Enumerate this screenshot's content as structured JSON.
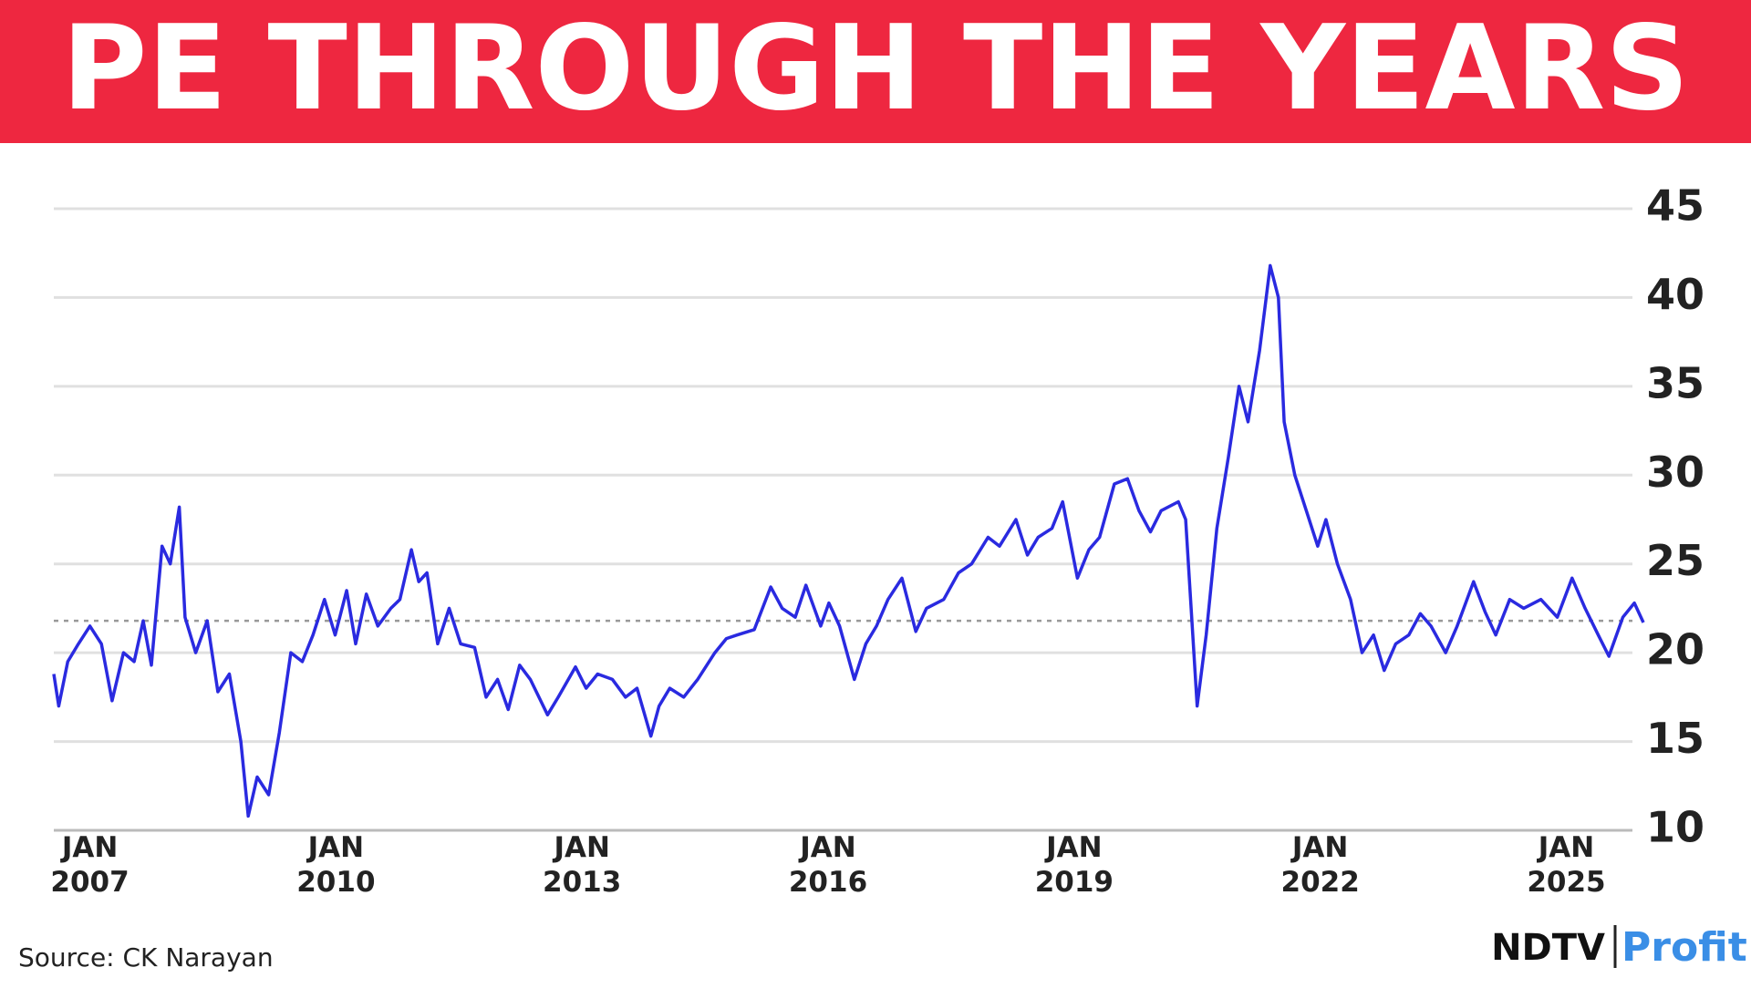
{
  "chart_data": {
    "type": "line",
    "title": "PE THROUGH THE YEARS",
    "source": "Source: CK Narayan",
    "logo": {
      "brand": "NDTV",
      "product": "Profit"
    },
    "x": [
      2006.56,
      2006.62,
      2006.73,
      2006.86,
      2007.0,
      2007.14,
      2007.27,
      2007.41,
      2007.54,
      2007.65,
      2007.75,
      2007.88,
      2007.98,
      2008.09,
      2008.16,
      2008.29,
      2008.43,
      2008.56,
      2008.7,
      2008.84,
      2008.93,
      2009.04,
      2009.18,
      2009.31,
      2009.45,
      2009.59,
      2009.72,
      2009.86,
      2009.99,
      2010.13,
      2010.24,
      2010.37,
      2010.51,
      2010.67,
      2010.78,
      2010.92,
      2011.01,
      2011.11,
      2011.24,
      2011.38,
      2011.52,
      2011.69,
      2011.83,
      2011.97,
      2012.1,
      2012.24,
      2012.37,
      2012.58,
      2012.71,
      2012.92,
      2013.05,
      2013.19,
      2013.37,
      2013.53,
      2013.67,
      2013.84,
      2013.94,
      2014.07,
      2014.24,
      2014.41,
      2014.62,
      2014.76,
      2014.89,
      2015.1,
      2015.3,
      2015.44,
      2015.6,
      2015.73,
      2015.91,
      2016.01,
      2016.14,
      2016.32,
      2016.46,
      2016.59,
      2016.73,
      2016.9,
      2017.07,
      2017.2,
      2017.41,
      2017.59,
      2017.75,
      2017.95,
      2018.09,
      2018.29,
      2018.43,
      2018.56,
      2018.73,
      2018.86,
      2019.04,
      2019.18,
      2019.31,
      2019.49,
      2019.65,
      2019.79,
      2019.93,
      2020.06,
      2020.27,
      2020.36,
      2020.5,
      2020.61,
      2020.74,
      2020.88,
      2021.01,
      2021.12,
      2021.26,
      2021.39,
      2021.49,
      2021.56,
      2021.69,
      2021.83,
      2021.97,
      2022.07,
      2022.21,
      2022.37,
      2022.51,
      2022.65,
      2022.78,
      2022.92,
      2023.08,
      2023.22,
      2023.35,
      2023.53,
      2023.67,
      2023.87,
      2024.01,
      2024.14,
      2024.31,
      2024.48,
      2024.69,
      2024.89,
      2025.07,
      2025.23,
      2025.39,
      2025.52,
      2025.69,
      2025.83,
      2025.94
    ],
    "series": [
      {
        "name": "PE",
        "color": "#2a2ae0",
        "values": [
          18.8,
          17,
          19.5,
          20.5,
          21.5,
          20.5,
          17.3,
          20,
          19.5,
          21.8,
          19.3,
          26,
          25,
          28.2,
          22,
          20,
          21.8,
          17.8,
          18.8,
          15,
          10.8,
          13,
          12,
          15.5,
          20,
          19.5,
          21,
          23,
          21,
          23.5,
          20.5,
          23.3,
          21.5,
          22.5,
          23,
          25.8,
          24,
          24.5,
          20.5,
          22.5,
          20.5,
          20.3,
          17.5,
          18.5,
          16.8,
          19.3,
          18.5,
          16.5,
          17.5,
          19.2,
          18,
          18.8,
          18.5,
          17.5,
          18,
          15.3,
          17,
          18,
          17.5,
          18.5,
          20,
          20.8,
          21,
          21.3,
          23.7,
          22.5,
          22,
          23.8,
          21.5,
          22.8,
          21.5,
          18.5,
          20.5,
          21.5,
          23,
          24.2,
          21.2,
          22.5,
          23,
          24.5,
          25,
          26.5,
          26,
          27.5,
          25.5,
          26.5,
          27,
          28.5,
          24.2,
          25.8,
          26.5,
          29.5,
          29.8,
          28,
          26.8,
          28,
          28.5,
          27.5,
          17,
          21,
          27,
          31,
          35,
          33,
          37,
          41.8,
          40,
          33,
          30,
          28,
          26,
          27.5,
          25,
          23,
          20,
          21,
          19,
          20.5,
          21,
          22.2,
          21.5,
          20,
          21.5,
          24,
          22.3,
          21,
          23,
          22.5,
          23,
          22,
          24.2,
          22.5,
          21,
          19.8,
          22,
          22.8,
          21.7
        ]
      }
    ],
    "reference_line": 21.8,
    "xlim": [
      2006.56,
      2025.94
    ],
    "xticks": [
      {
        "value": 2007,
        "label": "JAN 2007"
      },
      {
        "value": 2010,
        "label": "JAN 2010"
      },
      {
        "value": 2013,
        "label": "JAN 2013"
      },
      {
        "value": 2016,
        "label": "JAN 2016"
      },
      {
        "value": 2019,
        "label": "JAN 2019"
      },
      {
        "value": 2022,
        "label": "JAN 2022"
      },
      {
        "value": 2025,
        "label": "JAN 2025"
      }
    ],
    "ylim": [
      10,
      45
    ],
    "yticks": [
      10,
      15,
      20,
      25,
      30,
      35,
      40,
      45
    ],
    "grid": true
  }
}
